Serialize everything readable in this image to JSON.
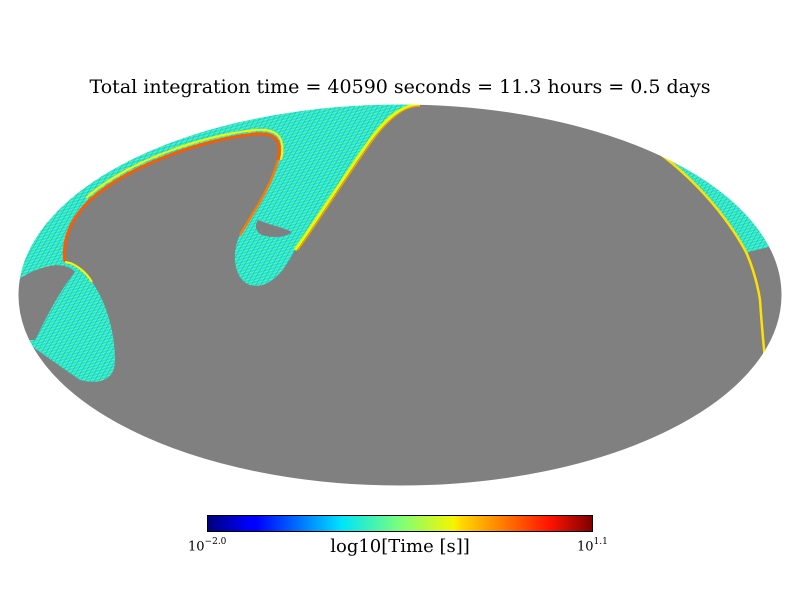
{
  "title": "Total integration time = 40590 seconds = 11.3 hours = 0.5 days",
  "colorbar": {
    "label": "log10[Time [s]]",
    "min_base": "10",
    "min_exp": "−2.0",
    "max_base": "10",
    "max_exp": "1.1",
    "colormap": "jet"
  },
  "map": {
    "projection": "Mollweide",
    "unobserved_color": "#808080"
  }
}
